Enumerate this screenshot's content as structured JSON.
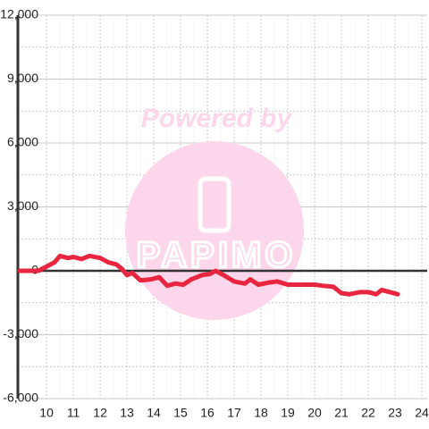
{
  "chart_data": {
    "type": "line",
    "x": [
      9.0,
      9.7,
      10.0,
      10.3,
      10.5,
      10.8,
      11.0,
      11.3,
      11.6,
      12.0,
      12.3,
      12.6,
      12.8,
      13.0,
      13.2,
      13.5,
      13.9,
      14.2,
      14.5,
      14.8,
      15.1,
      15.4,
      15.8,
      16.1,
      16.3,
      16.6,
      17.0,
      17.4,
      17.6,
      17.9,
      18.3,
      18.6,
      19.0,
      19.5,
      20.0,
      20.3,
      20.7,
      21.0,
      21.3,
      21.7,
      22.0,
      22.3,
      22.5,
      22.8,
      23.1
    ],
    "series": [
      {
        "color": "#e8263f",
        "values": [
          0,
          0,
          200,
          400,
          700,
          600,
          650,
          550,
          700,
          600,
          400,
          300,
          100,
          -200,
          -100,
          -450,
          -400,
          -300,
          -700,
          -600,
          -650,
          -400,
          -200,
          -150,
          0,
          -200,
          -500,
          -600,
          -400,
          -650,
          -550,
          -500,
          -650,
          -650,
          -650,
          -700,
          -750,
          -1050,
          -1100,
          -1000,
          -1000,
          -1100,
          -900,
          -1000,
          -1100
        ]
      }
    ],
    "xlim": [
      8.93,
      24.2
    ],
    "xticks": [
      10,
      11,
      12,
      13,
      14,
      15,
      16,
      17,
      18,
      19,
      20,
      21,
      22,
      23,
      24
    ],
    "ylim": [
      -6000,
      12000
    ],
    "yticks": [
      {
        "value": -6000,
        "label": "-6,000"
      },
      {
        "value": -3000,
        "label": "-3,000"
      },
      0,
      {
        "value": 3000,
        "label": "3,000"
      },
      {
        "value": 6000,
        "label": "6,000"
      },
      {
        "value": 9000,
        "label": "9,000"
      },
      {
        "value": 12000,
        "label": "12,000"
      }
    ],
    "grid": true,
    "watermark": {
      "text": "Powered by",
      "logo": "PAPIMO"
    }
  }
}
